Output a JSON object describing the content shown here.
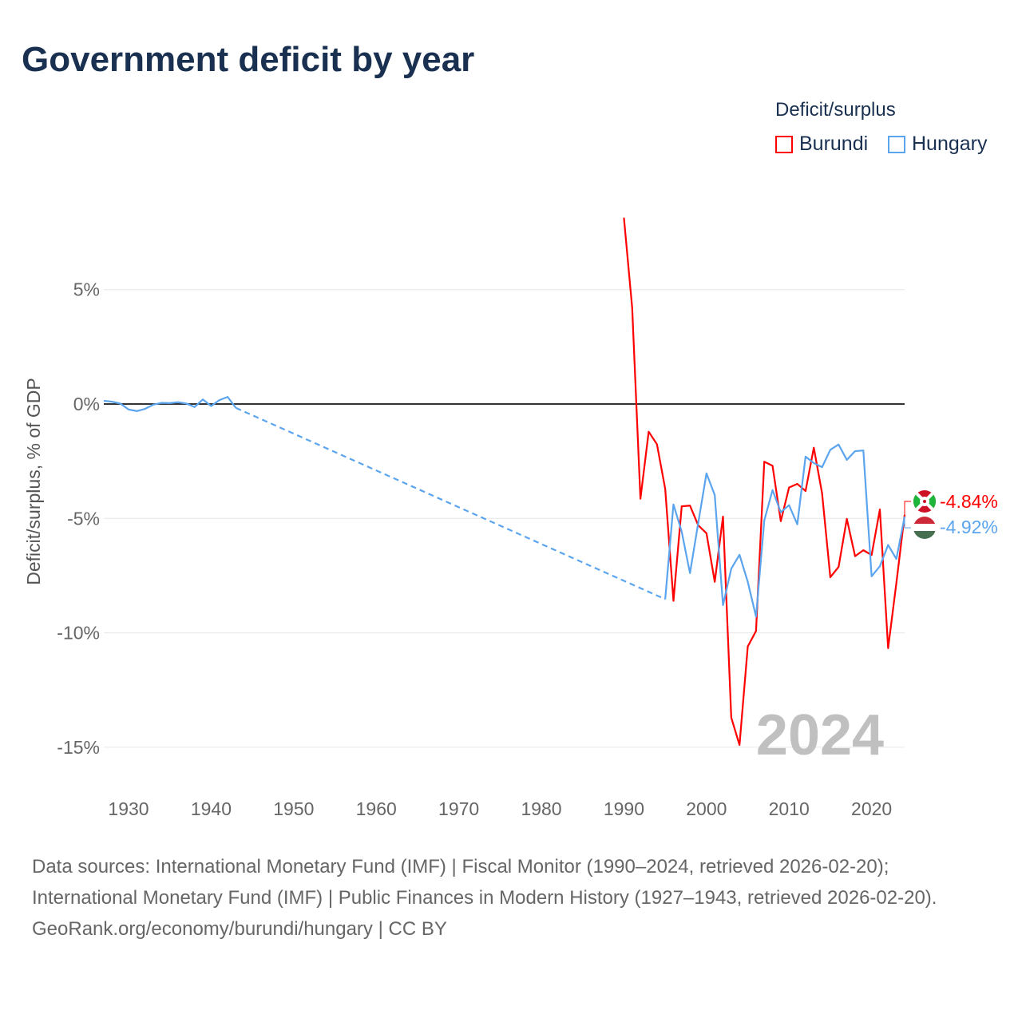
{
  "title": "Government deficit by year",
  "legend": {
    "title": "Deficit/surplus",
    "items": [
      {
        "name": "Burundi",
        "color": "#ff0000"
      },
      {
        "name": "Hungary",
        "color": "#5ba4ee"
      }
    ]
  },
  "year_watermark": "2024",
  "end_labels": {
    "burundi": "-4.84%",
    "hungary": "-4.92%"
  },
  "footer": {
    "sources": "Data sources: International Monetary Fund (IMF) | Fiscal Monitor (1990–2024, retrieved 2026-02-20); International Monetary Fund (IMF) | Public Finances in Modern History (1927–1943, retrieved 2026-02-20).",
    "credit": "GeoRank.org/economy/burundi/hungary | CC BY"
  },
  "chart_data": {
    "type": "line",
    "title": "Government deficit by year",
    "xlabel": "",
    "ylabel": "Deficit/surplus, % of GDP",
    "xlim": [
      1927,
      2024
    ],
    "ylim": [
      -17,
      8.5
    ],
    "xticks": [
      1930,
      1940,
      1950,
      1960,
      1970,
      1980,
      1990,
      2000,
      2010,
      2020
    ],
    "xtick_labels": [
      "1930",
      "1940",
      "1950",
      "1960",
      "1970",
      "1980",
      "1990",
      "2000",
      "2010",
      "2020"
    ],
    "yticks": [
      5,
      0,
      -5,
      -10,
      -15
    ],
    "ytick_labels": [
      "5%",
      "0%",
      "-5%",
      "-10%",
      "-15%"
    ],
    "grid": true,
    "legend_position": "top-right",
    "series": [
      {
        "name": "Burundi",
        "color": "#ff0000",
        "x": [
          1990,
          1991,
          1992,
          1993,
          1994,
          1995,
          1996,
          1997,
          1998,
          1999,
          2000,
          2001,
          2002,
          2003,
          2004,
          2005,
          2006,
          2007,
          2008,
          2009,
          2010,
          2011,
          2012,
          2013,
          2014,
          2015,
          2016,
          2017,
          2018,
          2019,
          2020,
          2021,
          2022,
          2023,
          2024
        ],
        "y": [
          8.14,
          4.2,
          -4.14,
          -1.21,
          -1.76,
          -3.71,
          -8.6,
          -4.47,
          -4.44,
          -5.3,
          -5.65,
          -7.77,
          -4.92,
          -13.7,
          -14.9,
          -10.6,
          -9.92,
          -2.52,
          -2.7,
          -5.12,
          -3.65,
          -3.49,
          -3.8,
          -1.91,
          -3.9,
          -7.57,
          -7.12,
          -5.02,
          -6.65,
          -6.39,
          -6.6,
          -4.61,
          -10.67,
          -7.82,
          -4.84
        ]
      },
      {
        "name": "Hungary",
        "color": "#5ba4ee",
        "x": [
          1927,
          1928,
          1929,
          1930,
          1931,
          1932,
          1933,
          1934,
          1935,
          1936,
          1937,
          1938,
          1939,
          1940,
          1941,
          1942,
          1943,
          1995,
          1996,
          1997,
          1998,
          1999,
          2000,
          2001,
          2002,
          2003,
          2004,
          2005,
          2006,
          2007,
          2008,
          2009,
          2010,
          2011,
          2012,
          2013,
          2014,
          2015,
          2016,
          2017,
          2018,
          2019,
          2020,
          2021,
          2022,
          2023,
          2024
        ],
        "y": [
          0.14,
          0.1,
          0.02,
          -0.24,
          -0.31,
          -0.21,
          -0.03,
          0.05,
          0.04,
          0.08,
          0.02,
          -0.13,
          0.2,
          -0.09,
          0.17,
          0.31,
          -0.17,
          -8.53,
          -4.39,
          -5.58,
          -7.39,
          -5.2,
          -3.03,
          -3.98,
          -8.79,
          -7.2,
          -6.59,
          -7.77,
          -9.29,
          -5.09,
          -3.76,
          -4.73,
          -4.42,
          -5.26,
          -2.3,
          -2.58,
          -2.76,
          -2.0,
          -1.77,
          -2.44,
          -2.06,
          -2.03,
          -7.53,
          -7.09,
          -6.16,
          -6.77,
          -4.92
        ],
        "gap_after": 1943
      }
    ]
  }
}
